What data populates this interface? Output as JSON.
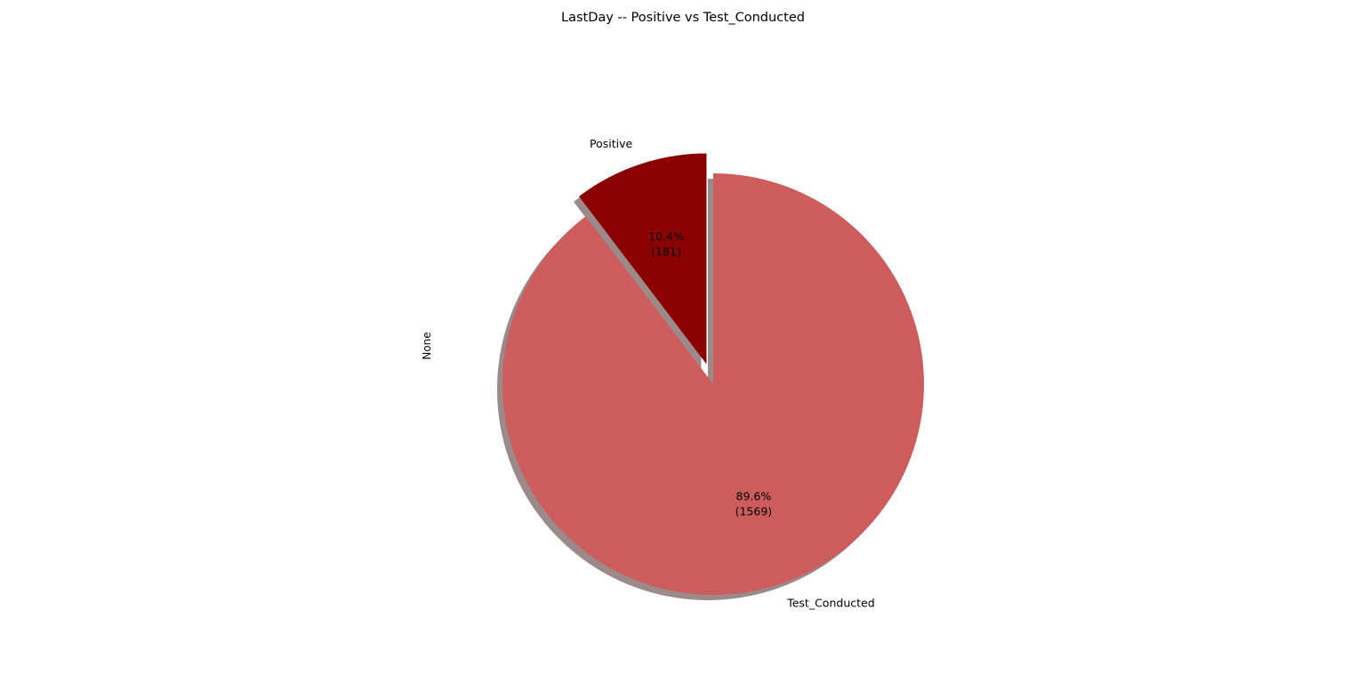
{
  "chart_data": {
    "type": "pie",
    "title": "LastDay -- Positive vs Test_Conducted",
    "ylabel": "None",
    "start_angle_deg": 90,
    "direction": "counterclockwise",
    "shadow": true,
    "slices": [
      {
        "label": "Positive",
        "value": 181,
        "percent_label": "10.4%",
        "value_label": "(181)",
        "color": "#8b0000",
        "exploded": true
      },
      {
        "label": "Test_Conducted",
        "value": 1569,
        "percent_label": "89.6%",
        "value_label": "(1569)",
        "color": "#cd5c5c",
        "exploded": false
      }
    ]
  }
}
